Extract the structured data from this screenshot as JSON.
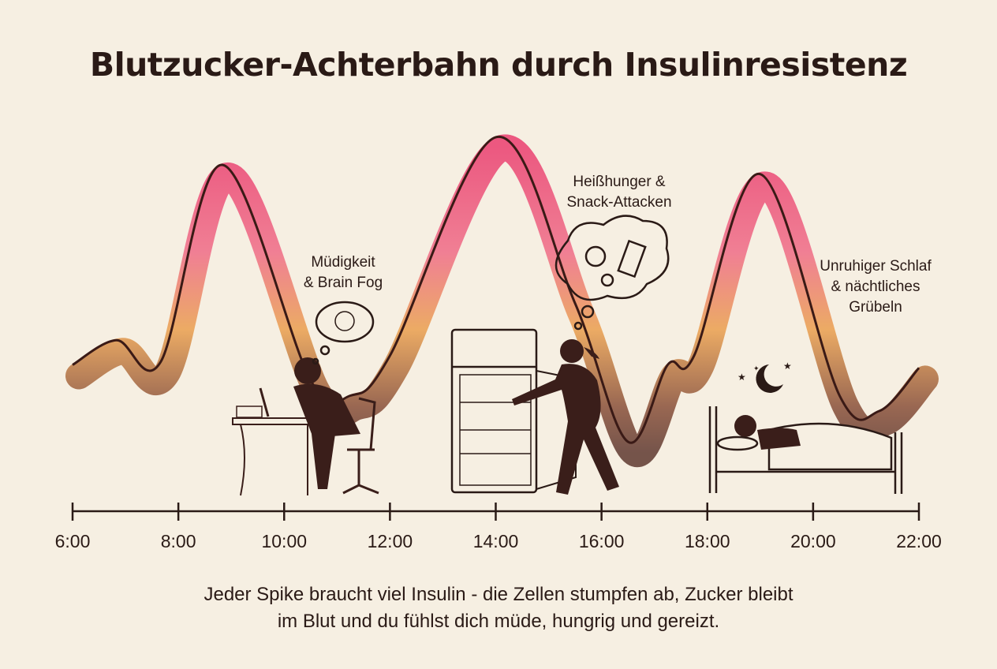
{
  "title": "Blutzucker-Achterbahn durch Insulinresistenz",
  "annotations": [
    {
      "text": "Müdigkeit\n& Brain Fog",
      "line1": "Müdigkeit",
      "line2": "& Brain Fog",
      "time": "11:00",
      "icon": "tangled-thought-cloud-icon"
    },
    {
      "text": "Heißhunger &\nSnack-Attacken",
      "line1": "Heißhunger &",
      "line2": "Snack-Attacken",
      "time": "15:45",
      "icon": "candy-thought-cloud-icon"
    },
    {
      "text": "Unruhiger Schlaf\n& nächtliches\nGrübeln",
      "line1": "Unruhiger Schlaf",
      "line2": "& nächtliches",
      "line3": "Grübeln",
      "time": "21:00",
      "icon": "moon-stars-icon"
    }
  ],
  "caption": {
    "line1": "Jeder Spike braucht viel Insulin - die Zellen stumpfen ab, Zucker bleibt",
    "line2": "im Blut und du fühlst dich müde, hungrig und gereizt."
  },
  "colors": {
    "background": "#f6efe2",
    "peak": "#e8255f",
    "mid": "#e8943a",
    "low": "#5a2a1e",
    "line": "#3a1a16"
  },
  "chart_data": {
    "type": "area",
    "title": "Blutzucker-Achterbahn durch Insulinresistenz",
    "xlabel": "",
    "ylabel": "",
    "x_ticks": [
      "6:00",
      "8:00",
      "10:00",
      "12:00",
      "14:00",
      "16:00",
      "18:00",
      "20:00",
      "22:00"
    ],
    "xlim": [
      "6:00",
      "22:00"
    ],
    "y_axis_shown": false,
    "grid": false,
    "series": [
      {
        "x": [
          "6:00",
          "6:50",
          "7:40",
          "8:50",
          "10:30",
          "11:15",
          "12:00",
          "14:00",
          "15:30",
          "16:30",
          "17:15",
          "17:45",
          "19:00",
          "20:30",
          "21:15",
          "22:00"
        ],
        "y": [
          25,
          33,
          26,
          90,
          20,
          15,
          28,
          99,
          45,
          0,
          25,
          28,
          87,
          15,
          10,
          24
        ]
      }
    ],
    "peaks": [
      "8:50",
      "14:00",
      "19:00"
    ]
  }
}
